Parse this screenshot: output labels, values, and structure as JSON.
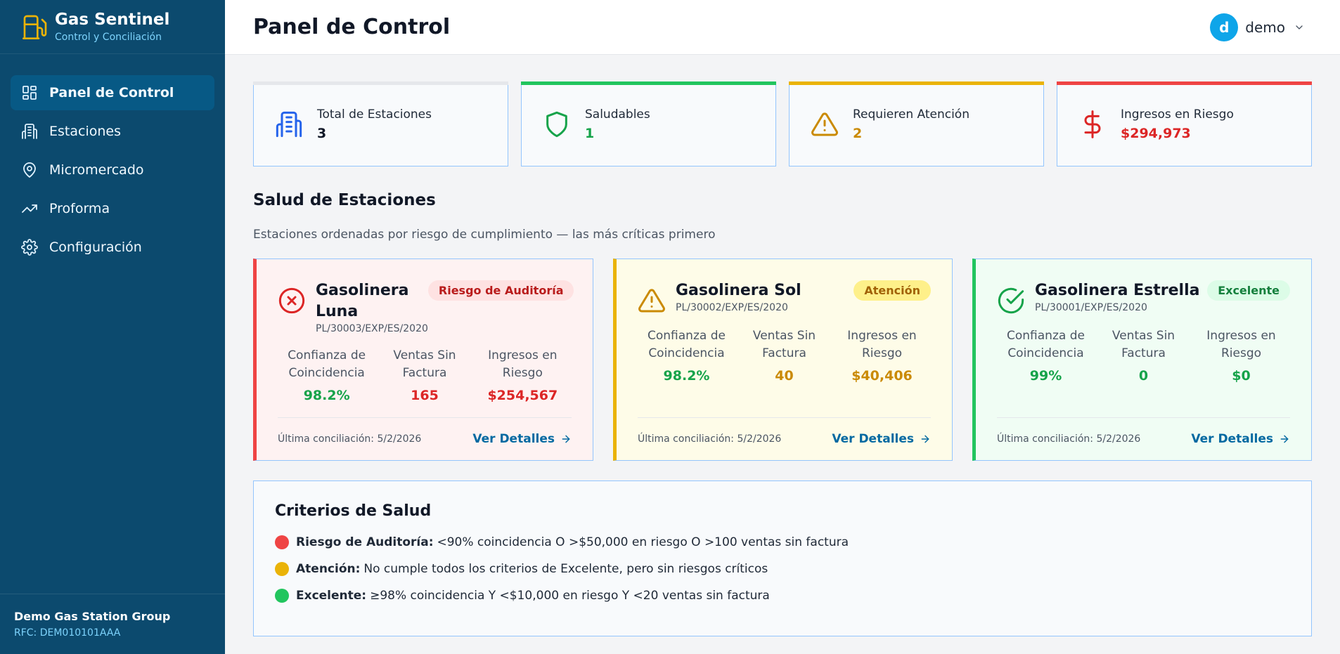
{
  "brand": {
    "title": "Gas Sentinel",
    "subtitle": "Control y Conciliación",
    "icon": "fuel-pump-icon",
    "icon_color": "#eab308"
  },
  "nav": {
    "items": [
      {
        "label": "Panel de Control",
        "icon": "dashboard-icon",
        "active": true
      },
      {
        "label": "Estaciones",
        "icon": "building-icon"
      },
      {
        "label": "Micromercado",
        "icon": "map-pin-icon"
      },
      {
        "label": "Proforma",
        "icon": "trending-up-icon"
      },
      {
        "label": "Configuración",
        "icon": "gear-icon"
      }
    ]
  },
  "footer": {
    "org_name": "Demo Gas Station Group",
    "rfc": "RFC: DEM010101AAA"
  },
  "header": {
    "title": "Panel de Control",
    "user": {
      "initial": "d",
      "name": "demo"
    }
  },
  "stats": [
    {
      "label": "Total de Estaciones",
      "value": "3",
      "icon": "building-icon",
      "color": "#111827"
    },
    {
      "label": "Saludables",
      "value": "1",
      "icon": "shield-icon",
      "color": "#16a34a"
    },
    {
      "label": "Requieren Atención",
      "value": "2",
      "icon": "warning-icon",
      "color": "#ca8a04"
    },
    {
      "label": "Ingresos en Riesgo",
      "value": "$294,973",
      "icon": "dollar-icon",
      "color": "#dc2626"
    }
  ],
  "health": {
    "title": "Salud de Estaciones",
    "subtitle": "Estaciones ordenadas por riesgo de cumplimiento — las más críticas primero",
    "metric_labels": {
      "confidence": "Confianza de Coincidencia",
      "unbilled": "Ventas Sin Factura",
      "revenue_risk": "Ingresos en Riesgo"
    },
    "details_label": "Ver Detalles",
    "stations": [
      {
        "name": "Gasolinera Luna",
        "code": "PL/30003/EXP/ES/2020",
        "status": "Riesgo de Auditoría",
        "confidence": "98.2%",
        "unbilled": "165",
        "revenue_risk": "$254,567",
        "last_reconciliation": "Última conciliación: 5/2/2026"
      },
      {
        "name": "Gasolinera Sol",
        "code": "PL/30002/EXP/ES/2020",
        "status": "Atención",
        "confidence": "98.2%",
        "unbilled": "40",
        "revenue_risk": "$40,406",
        "last_reconciliation": "Última conciliación: 5/2/2026"
      },
      {
        "name": "Gasolinera Estrella",
        "code": "PL/30001/EXP/ES/2020",
        "status": "Excelente",
        "confidence": "99%",
        "unbilled": "0",
        "revenue_risk": "$0",
        "last_reconciliation": "Última conciliación: 5/2/2026"
      }
    ]
  },
  "criteria": {
    "title": "Criterios de Salud",
    "items": [
      {
        "label": "Riesgo de Auditoría:",
        "text": "<90% coincidencia O >$50,000 en riesgo O >100 ventas sin factura",
        "color": "#ef4444"
      },
      {
        "label": "Atención:",
        "text": "No cumple todos los criterios de Excelente, pero sin riesgos críticos",
        "color": "#eab308"
      },
      {
        "label": "Excelente:",
        "text": "≥98% coincidencia Y <$10,000 en riesgo Y <20 ventas sin factura",
        "color": "#22c55e"
      }
    ]
  }
}
